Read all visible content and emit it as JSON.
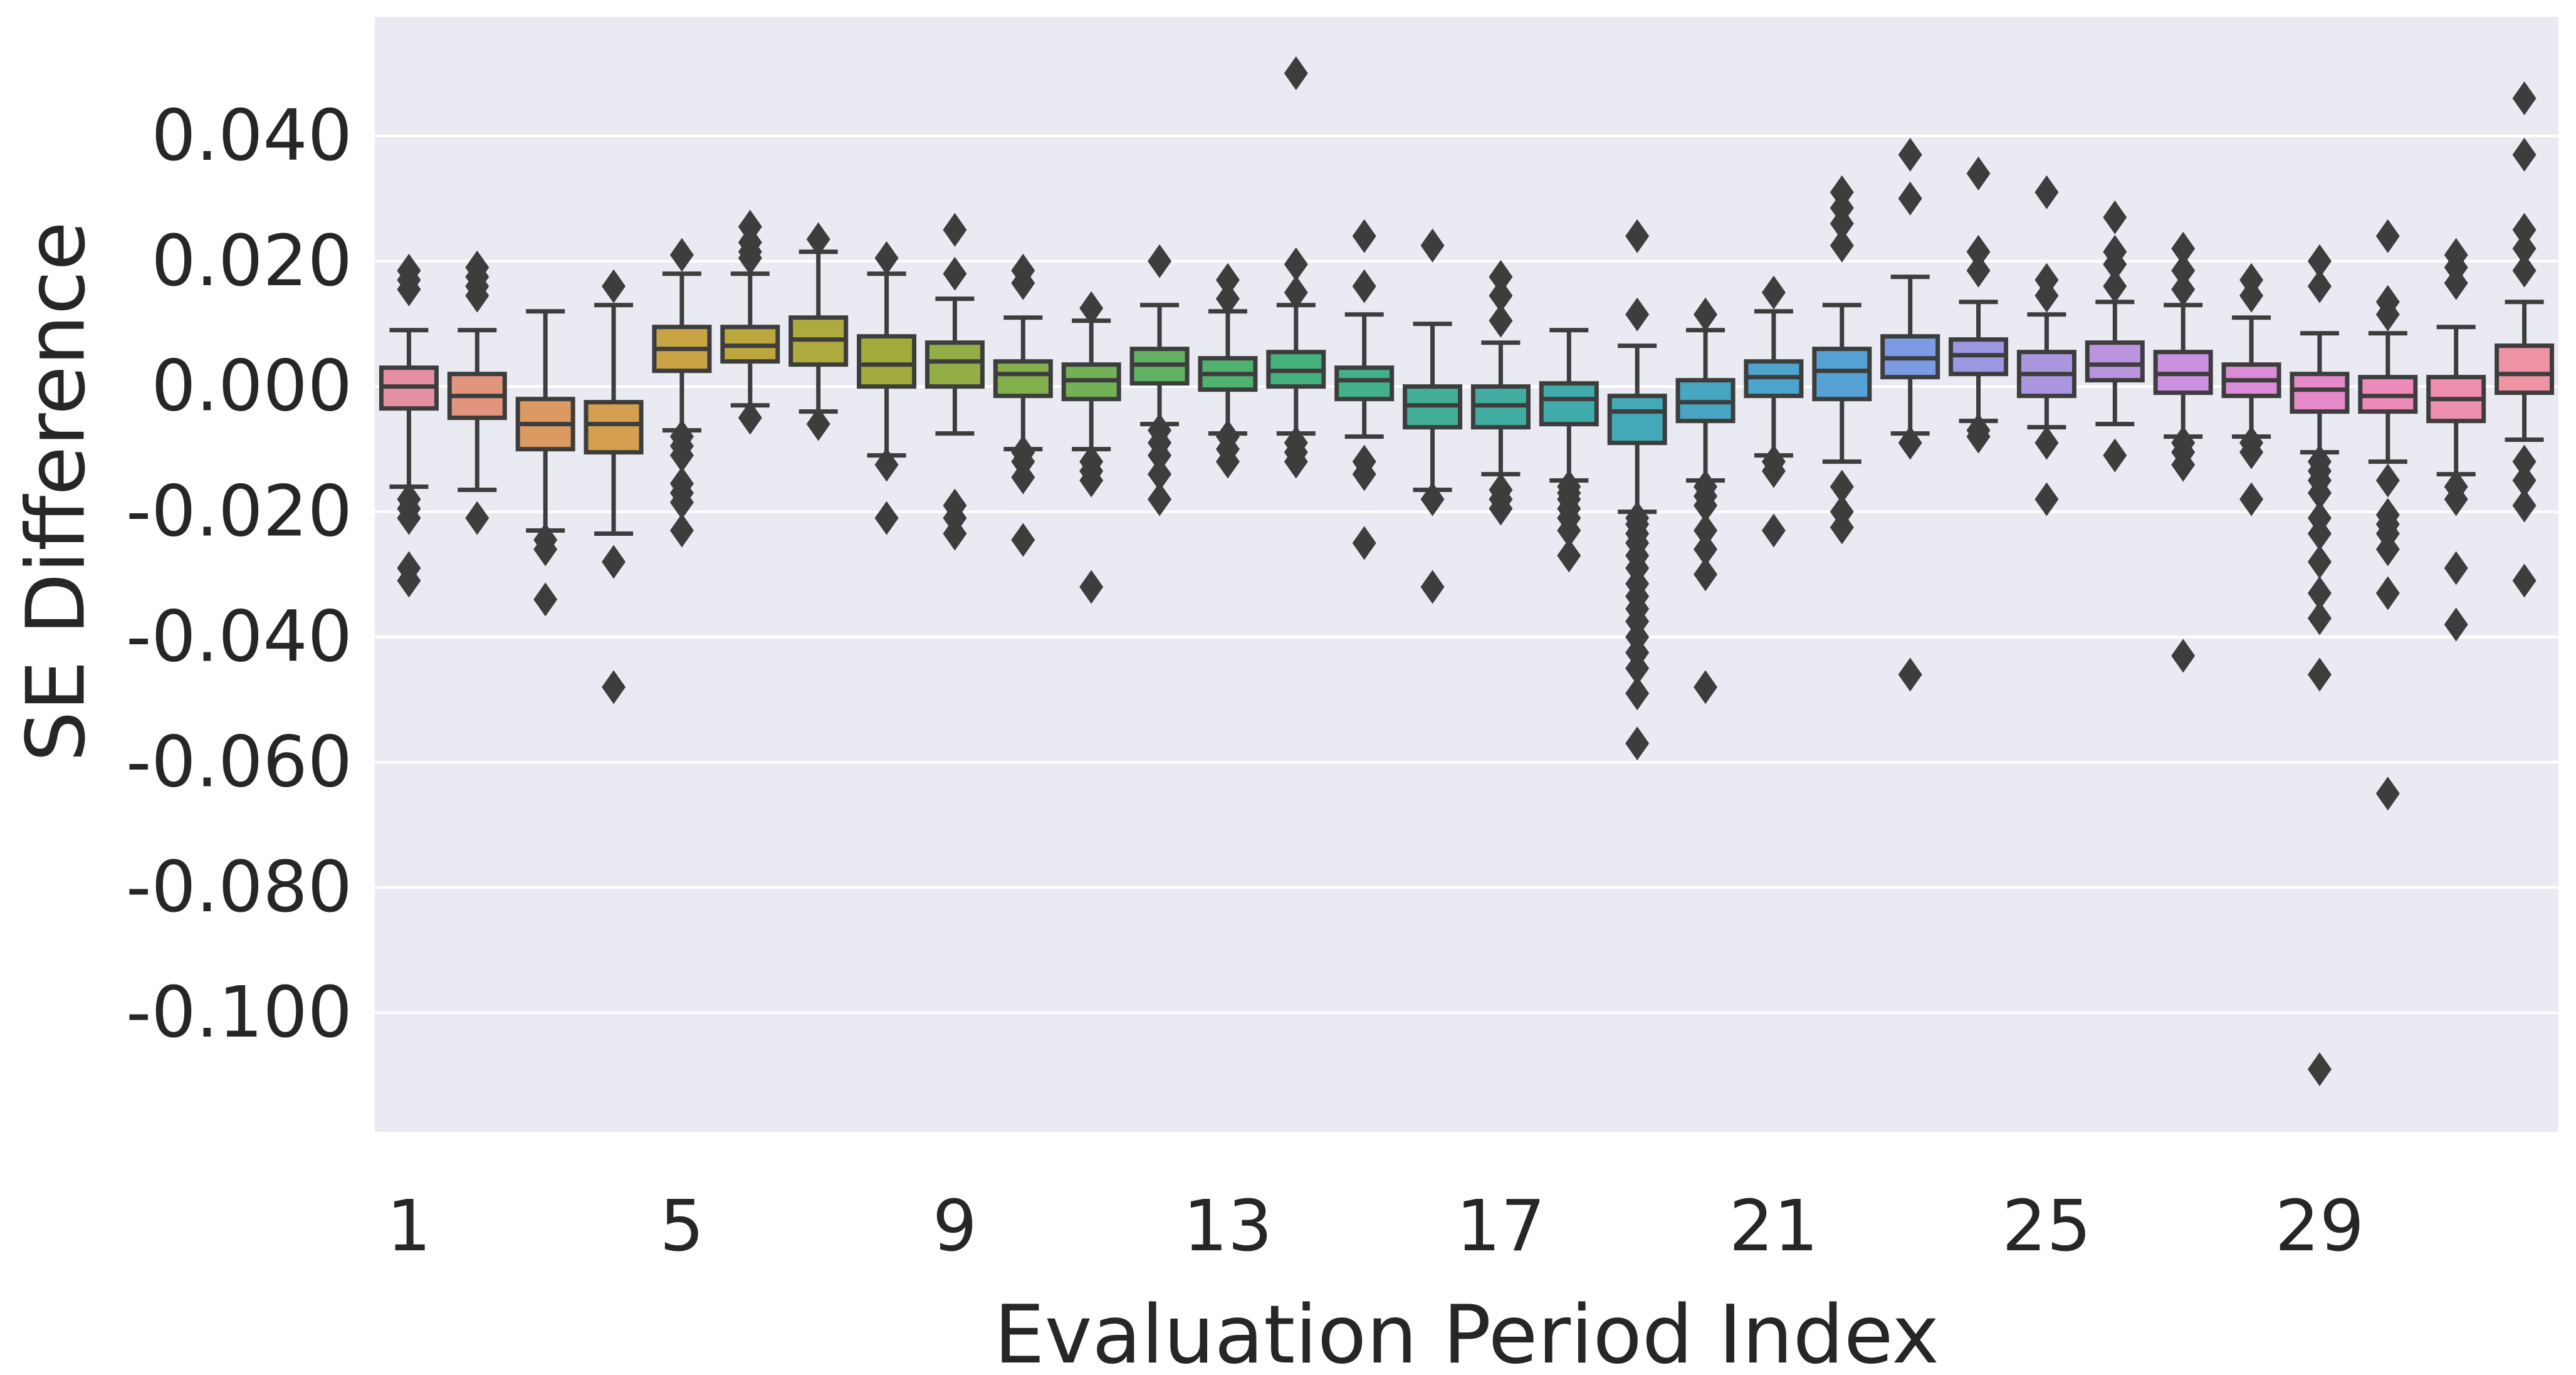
{
  "figure": {
    "x_axis_label": "Evaluation Period Index",
    "y_axis_label": "SE Difference",
    "background_color": "#ffffff",
    "plot_background_color": "#eaeaf2",
    "gridline_color": "#ffffff",
    "box_edge_color": "#3d3d3d",
    "text_color": "#262626"
  },
  "chart_data": {
    "type": "box",
    "title": "",
    "xlabel": "Evaluation Period Index",
    "ylabel": "SE Difference",
    "grid": true,
    "legend": false,
    "n_boxes": 32,
    "ylim": [
      -0.119,
      0.059
    ],
    "y_ticks": [
      0.04,
      0.02,
      0.0,
      -0.02,
      -0.04,
      -0.06,
      -0.08,
      -0.1
    ],
    "y_tick_labels": [
      "0.040",
      "0.020",
      "0.000",
      "-0.020",
      "-0.040",
      "-0.060",
      "-0.080",
      "-0.100"
    ],
    "x_tick_positions": [
      1,
      5,
      9,
      13,
      17,
      21,
      25,
      29
    ],
    "x_tick_labels": [
      "1",
      "5",
      "9",
      "13",
      "17",
      "21",
      "25",
      "29"
    ],
    "boxes": [
      {
        "index": 1,
        "color": "#e58fa2",
        "whisker_low": -0.016,
        "q1": -0.0035,
        "median": 0.0,
        "q3": 0.003,
        "whisker_high": 0.009,
        "outliers": [
          0.0185,
          0.017,
          0.0155,
          -0.018,
          -0.0195,
          -0.021,
          -0.029,
          -0.031
        ]
      },
      {
        "index": 2,
        "color": "#e2947f",
        "whisker_low": -0.0165,
        "q1": -0.005,
        "median": -0.0015,
        "q3": 0.002,
        "whisker_high": 0.009,
        "outliers": [
          0.019,
          0.0175,
          0.016,
          0.0145,
          -0.021
        ]
      },
      {
        "index": 3,
        "color": "#dc9a62",
        "whisker_low": -0.023,
        "q1": -0.01,
        "median": -0.006,
        "q3": -0.002,
        "whisker_high": 0.012,
        "outliers": [
          -0.0245,
          -0.026,
          -0.034
        ]
      },
      {
        "index": 4,
        "color": "#d4a04f",
        "whisker_low": -0.0235,
        "q1": -0.0105,
        "median": -0.006,
        "q3": -0.0025,
        "whisker_high": 0.013,
        "outliers": [
          0.016,
          -0.028,
          -0.048
        ]
      },
      {
        "index": 5,
        "color": "#c9a444",
        "whisker_low": -0.007,
        "q1": 0.0025,
        "median": 0.006,
        "q3": 0.0095,
        "whisker_high": 0.018,
        "outliers": [
          0.021,
          -0.008,
          -0.0095,
          -0.011,
          -0.0155,
          -0.017,
          -0.0185,
          -0.023
        ]
      },
      {
        "index": 6,
        "color": "#bca73f",
        "whisker_low": -0.003,
        "q1": 0.004,
        "median": 0.0065,
        "q3": 0.0095,
        "whisker_high": 0.018,
        "outliers": [
          0.0255,
          0.023,
          0.0215,
          0.0205,
          -0.005
        ]
      },
      {
        "index": 7,
        "color": "#afaa3e",
        "whisker_low": -0.004,
        "q1": 0.0035,
        "median": 0.0075,
        "q3": 0.011,
        "whisker_high": 0.0215,
        "outliers": [
          0.0235,
          -0.006
        ]
      },
      {
        "index": 8,
        "color": "#a1ac3d",
        "whisker_low": -0.011,
        "q1": 0.0,
        "median": 0.0035,
        "q3": 0.008,
        "whisker_high": 0.018,
        "outliers": [
          0.0205,
          -0.0125,
          -0.021
        ]
      },
      {
        "index": 9,
        "color": "#92ae45",
        "whisker_low": -0.0075,
        "q1": 0.0,
        "median": 0.004,
        "q3": 0.007,
        "whisker_high": 0.014,
        "outliers": [
          0.025,
          0.018,
          -0.019,
          -0.021,
          -0.0235
        ]
      },
      {
        "index": 10,
        "color": "#83b04d",
        "whisker_low": -0.01,
        "q1": -0.0015,
        "median": 0.002,
        "q3": 0.004,
        "whisker_high": 0.011,
        "outliers": [
          0.0185,
          0.0165,
          -0.0105,
          -0.012,
          -0.0145,
          -0.0245
        ]
      },
      {
        "index": 11,
        "color": "#73b156",
        "whisker_low": -0.01,
        "q1": -0.002,
        "median": 0.001,
        "q3": 0.0035,
        "whisker_high": 0.0105,
        "outliers": [
          0.0125,
          -0.012,
          -0.0135,
          -0.015,
          -0.032
        ]
      },
      {
        "index": 12,
        "color": "#61b262",
        "whisker_low": -0.006,
        "q1": 0.0005,
        "median": 0.0035,
        "q3": 0.006,
        "whisker_high": 0.013,
        "outliers": [
          0.02,
          -0.007,
          -0.009,
          -0.011,
          -0.014,
          -0.018
        ]
      },
      {
        "index": 13,
        "color": "#4fb26e",
        "whisker_low": -0.0075,
        "q1": -0.0005,
        "median": 0.002,
        "q3": 0.0045,
        "whisker_high": 0.012,
        "outliers": [
          0.017,
          0.014,
          -0.008,
          -0.01,
          -0.012
        ]
      },
      {
        "index": 14,
        "color": "#45b17b",
        "whisker_low": -0.0075,
        "q1": 0.0,
        "median": 0.0025,
        "q3": 0.0055,
        "whisker_high": 0.013,
        "outliers": [
          0.05,
          0.0195,
          0.015,
          -0.009,
          -0.0105,
          -0.012
        ]
      },
      {
        "index": 15,
        "color": "#42b089",
        "whisker_low": -0.008,
        "q1": -0.002,
        "median": 0.001,
        "q3": 0.003,
        "whisker_high": 0.0115,
        "outliers": [
          0.024,
          0.016,
          -0.012,
          -0.014,
          -0.025
        ]
      },
      {
        "index": 16,
        "color": "#41ae95",
        "whisker_low": -0.0165,
        "q1": -0.0065,
        "median": -0.003,
        "q3": 0.0,
        "whisker_high": 0.01,
        "outliers": [
          0.0225,
          -0.018,
          -0.032
        ]
      },
      {
        "index": 17,
        "color": "#41ada0",
        "whisker_low": -0.014,
        "q1": -0.0065,
        "median": -0.003,
        "q3": 0.0,
        "whisker_high": 0.007,
        "outliers": [
          0.0175,
          0.0145,
          0.0105,
          -0.0165,
          -0.018,
          -0.0195
        ]
      },
      {
        "index": 18,
        "color": "#41abab",
        "whisker_low": -0.015,
        "q1": -0.006,
        "median": -0.002,
        "q3": 0.0005,
        "whisker_high": 0.009,
        "outliers": [
          -0.016,
          -0.017,
          -0.018,
          -0.0195,
          -0.021,
          -0.023,
          -0.027
        ]
      },
      {
        "index": 19,
        "color": "#43a9b6",
        "whisker_low": -0.02,
        "q1": -0.009,
        "median": -0.004,
        "q3": -0.0015,
        "whisker_high": 0.0065,
        "outliers": [
          0.024,
          0.0115,
          -0.021,
          -0.022,
          -0.0235,
          -0.025,
          -0.027,
          -0.029,
          -0.0315,
          -0.0335,
          -0.0355,
          -0.0375,
          -0.04,
          -0.0425,
          -0.045,
          -0.049,
          -0.057
        ]
      },
      {
        "index": 20,
        "color": "#47a6c1",
        "whisker_low": -0.015,
        "q1": -0.0055,
        "median": -0.0025,
        "q3": 0.001,
        "whisker_high": 0.009,
        "outliers": [
          0.0115,
          -0.016,
          -0.0175,
          -0.019,
          -0.023,
          -0.026,
          -0.03,
          -0.048
        ]
      },
      {
        "index": 21,
        "color": "#4da4cc",
        "whisker_low": -0.011,
        "q1": -0.0015,
        "median": 0.0015,
        "q3": 0.004,
        "whisker_high": 0.012,
        "outliers": [
          0.015,
          -0.012,
          -0.0135,
          -0.023
        ]
      },
      {
        "index": 22,
        "color": "#56a1d6",
        "whisker_low": -0.012,
        "q1": -0.002,
        "median": 0.0025,
        "q3": 0.006,
        "whisker_high": 0.013,
        "outliers": [
          0.031,
          0.0285,
          0.026,
          0.0225,
          -0.016,
          -0.02,
          -0.0225
        ]
      },
      {
        "index": 23,
        "color": "#7b9ce4",
        "whisker_low": -0.0075,
        "q1": 0.0015,
        "median": 0.0045,
        "q3": 0.008,
        "whisker_high": 0.0175,
        "outliers": [
          0.037,
          0.03,
          -0.009,
          -0.046
        ]
      },
      {
        "index": 24,
        "color": "#9c97e2",
        "whisker_low": -0.0055,
        "q1": 0.002,
        "median": 0.005,
        "q3": 0.0075,
        "whisker_high": 0.0135,
        "outliers": [
          0.034,
          0.0215,
          0.0185,
          -0.007,
          -0.008
        ]
      },
      {
        "index": 25,
        "color": "#ab97e0",
        "whisker_low": -0.0065,
        "q1": -0.0015,
        "median": 0.002,
        "q3": 0.0055,
        "whisker_high": 0.0115,
        "outliers": [
          0.031,
          0.017,
          0.0145,
          -0.009,
          -0.018
        ]
      },
      {
        "index": 26,
        "color": "#bb94e0",
        "whisker_low": -0.006,
        "q1": 0.001,
        "median": 0.0035,
        "q3": 0.007,
        "whisker_high": 0.0135,
        "outliers": [
          0.027,
          0.0215,
          0.0195,
          0.016,
          -0.011
        ]
      },
      {
        "index": 27,
        "color": "#cc90e0",
        "whisker_low": -0.008,
        "q1": -0.001,
        "median": 0.002,
        "q3": 0.0055,
        "whisker_high": 0.013,
        "outliers": [
          0.022,
          0.0185,
          0.0155,
          -0.009,
          -0.0105,
          -0.0125,
          -0.043
        ]
      },
      {
        "index": 28,
        "color": "#db8cd9",
        "whisker_low": -0.008,
        "q1": -0.0015,
        "median": 0.001,
        "q3": 0.0035,
        "whisker_high": 0.011,
        "outliers": [
          0.017,
          0.0145,
          -0.009,
          -0.0105,
          -0.018
        ]
      },
      {
        "index": 29,
        "color": "#e589c8",
        "whisker_low": -0.0105,
        "q1": -0.004,
        "median": -0.0005,
        "q3": 0.002,
        "whisker_high": 0.0085,
        "outliers": [
          0.02,
          0.016,
          -0.012,
          -0.0135,
          -0.015,
          -0.017,
          -0.021,
          -0.0235,
          -0.028,
          -0.033,
          -0.037,
          -0.046,
          -0.109
        ]
      },
      {
        "index": 30,
        "color": "#ec8bba",
        "whisker_low": -0.012,
        "q1": -0.004,
        "median": -0.0015,
        "q3": 0.0015,
        "whisker_high": 0.0085,
        "outliers": [
          0.024,
          0.0135,
          0.0115,
          -0.015,
          -0.0205,
          -0.022,
          -0.0235,
          -0.026,
          -0.033,
          -0.065
        ]
      },
      {
        "index": 31,
        "color": "#ef8fae",
        "whisker_low": -0.014,
        "q1": -0.0055,
        "median": -0.002,
        "q3": 0.0015,
        "whisker_high": 0.0095,
        "outliers": [
          0.021,
          0.019,
          0.0165,
          -0.016,
          -0.018,
          -0.029,
          -0.038
        ]
      },
      {
        "index": 32,
        "color": "#ee93a3",
        "whisker_low": -0.0085,
        "q1": -0.001,
        "median": 0.002,
        "q3": 0.0065,
        "whisker_high": 0.0135,
        "outliers": [
          0.046,
          0.037,
          0.025,
          0.022,
          0.0185,
          -0.012,
          -0.015,
          -0.019,
          -0.031
        ]
      }
    ]
  }
}
